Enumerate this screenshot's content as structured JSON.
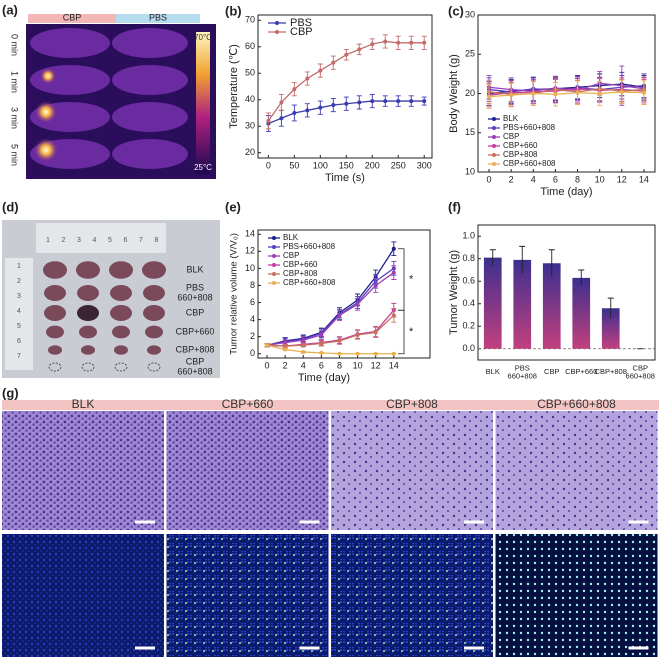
{
  "panels": {
    "a": {
      "label": "(a)",
      "groups": [
        "CBP",
        "PBS"
      ],
      "times": [
        "0 min",
        "1 min",
        "3 min",
        "5 min"
      ],
      "scale": [
        "70°C",
        "25°C"
      ]
    },
    "d": {
      "label": "(d)",
      "ruler_top": [
        "1",
        "2",
        "3",
        "4",
        "5",
        "6",
        "7",
        "8"
      ],
      "ruler_left": [
        "1",
        "2",
        "3",
        "4",
        "5",
        "6",
        "7"
      ],
      "groups": [
        "BLK",
        "PBS 660+808",
        "CBP",
        "CBP+660",
        "CBP+808",
        "CBP 660+808"
      ]
    },
    "g": {
      "label": "(g)",
      "groups": [
        "BLK",
        "CBP+660",
        "CBP+808",
        "CBP+660+808"
      ]
    }
  },
  "chart_data": [
    {
      "type": "line",
      "label": "(b)",
      "xlabel": "Time (s)",
      "ylabel": "Temperature (℃)",
      "legend": "upper left",
      "x": [
        0,
        25,
        50,
        75,
        100,
        125,
        150,
        175,
        200,
        225,
        250,
        275,
        300
      ],
      "series": [
        {
          "name": "PBS",
          "color": "#3b3bb0",
          "values": [
            31,
            33,
            35,
            36,
            37,
            38,
            38.5,
            39,
            39.5,
            39.5,
            39.5,
            39.5,
            39.5
          ],
          "errors": [
            3,
            3,
            3,
            2.5,
            2.5,
            2.5,
            2.5,
            2.5,
            2.5,
            2,
            2,
            2,
            1.5
          ]
        },
        {
          "name": "CBP",
          "color": "#c46a6a",
          "values": [
            32,
            39,
            44,
            48,
            51,
            54,
            57,
            59,
            61,
            62,
            61.5,
            61.5,
            61.5
          ],
          "errors": [
            3,
            3,
            2.5,
            2.5,
            2.5,
            2.5,
            2,
            2,
            2,
            2.5,
            2.5,
            2.5,
            2.5
          ]
        }
      ],
      "xlim": [
        -20,
        315
      ],
      "xticks": [
        0,
        50,
        100,
        150,
        200,
        250,
        300
      ],
      "ylim": [
        18,
        72
      ],
      "yticks": [
        20,
        30,
        40,
        50,
        60,
        70
      ]
    },
    {
      "type": "line",
      "label": "(c)",
      "xlabel": "Time (day)",
      "ylabel": "Body Weight (g)",
      "legend": "lower left",
      "x": [
        0,
        2,
        4,
        6,
        8,
        10,
        12,
        14
      ],
      "series": [
        {
          "name": "BLK",
          "color": "#1f1f8f",
          "values": [
            20,
            20.3,
            20.5,
            20.6,
            20.8,
            21,
            21.2,
            20.8
          ],
          "errors": [
            1.5,
            1.5,
            1.5,
            1.5,
            1.5,
            1.5,
            1.5,
            1.5
          ]
        },
        {
          "name": "PBS+660+808",
          "color": "#5a3fbf",
          "values": [
            20.5,
            20.2,
            20.6,
            20.4,
            20.7,
            20.5,
            20.8,
            21
          ],
          "errors": [
            1.5,
            1.5,
            1.5,
            1.5,
            1.5,
            1.5,
            1.5,
            1.5
          ]
        },
        {
          "name": "CBP",
          "color": "#9b3fb5",
          "values": [
            20.8,
            20.5,
            20.3,
            20.7,
            20.4,
            21.3,
            21,
            20.6
          ],
          "errors": [
            1.5,
            1.5,
            1.5,
            1.5,
            1.5,
            1.5,
            2.5,
            1.5
          ]
        },
        {
          "name": "CBP+660",
          "color": "#c43f9b",
          "values": [
            19.8,
            20.1,
            20.2,
            20.3,
            20.6,
            20.4,
            20.5,
            20.3
          ],
          "errors": [
            1.5,
            1.5,
            1.5,
            1.5,
            1.5,
            1.5,
            1.5,
            1.5
          ]
        },
        {
          "name": "CBP+808",
          "color": "#c87060",
          "values": [
            20.2,
            19.9,
            20,
            20.5,
            20.2,
            20.6,
            20.3,
            20.5
          ],
          "errors": [
            1.5,
            1.5,
            1.5,
            1.5,
            1.5,
            1.5,
            1.5,
            1.5
          ]
        },
        {
          "name": "CBP+660+808",
          "color": "#e8b050",
          "values": [
            19.6,
            19.8,
            20,
            19.9,
            20.1,
            20,
            20.2,
            20.1
          ],
          "errors": [
            1.5,
            1.5,
            1.5,
            1.5,
            1.5,
            1.5,
            1.5,
            1.5
          ]
        }
      ],
      "xlim": [
        -1,
        15
      ],
      "xticks": [
        0,
        2,
        4,
        6,
        8,
        10,
        12,
        14
      ],
      "ylim": [
        10,
        30
      ],
      "yticks": [
        10,
        15,
        20,
        25,
        30
      ]
    },
    {
      "type": "line",
      "label": "(e)",
      "xlabel": "Time (day)",
      "ylabel": "Tumor relative volume (V/V₀)",
      "legend": "upper left",
      "annotations": [
        "*",
        "*"
      ],
      "x": [
        0,
        2,
        4,
        6,
        8,
        10,
        12,
        14
      ],
      "series": [
        {
          "name": "BLK",
          "color": "#1f1f8f",
          "values": [
            1,
            1.5,
            1.8,
            2.5,
            4.8,
            6.3,
            9,
            12.3
          ],
          "errors": [
            0.2,
            0.4,
            0.4,
            0.5,
            0.6,
            0.7,
            0.8,
            0.8
          ]
        },
        {
          "name": "PBS+660+808",
          "color": "#5a3fbf",
          "values": [
            1,
            1.4,
            1.7,
            2.4,
            4.6,
            6,
            8.5,
            10
          ],
          "errors": [
            0.2,
            0.4,
            0.4,
            0.5,
            0.6,
            0.7,
            0.8,
            0.8
          ]
        },
        {
          "name": "CBP",
          "color": "#9b3fb5",
          "values": [
            1,
            1.3,
            1.6,
            2.2,
            4.5,
            5.8,
            8,
            9.5
          ],
          "errors": [
            0.2,
            0.3,
            0.4,
            0.5,
            0.6,
            0.7,
            0.8,
            0.8
          ]
        },
        {
          "name": "CBP+660",
          "color": "#c43f9b",
          "values": [
            1,
            0.9,
            1.1,
            1.3,
            1.6,
            2.3,
            2.6,
            5.1
          ],
          "errors": [
            0.2,
            0.2,
            0.2,
            0.3,
            0.4,
            0.5,
            0.6,
            0.8
          ]
        },
        {
          "name": "CBP+808",
          "color": "#c87060",
          "values": [
            1,
            0.9,
            1,
            1.2,
            1.5,
            2.2,
            2.5,
            4.5
          ],
          "errors": [
            0.2,
            0.2,
            0.2,
            0.3,
            0.4,
            0.5,
            0.6,
            0.8
          ]
        },
        {
          "name": "CBP+660+808",
          "color": "#e8b050",
          "values": [
            1,
            0.5,
            0.2,
            0.1,
            0,
            0,
            0,
            0
          ],
          "errors": [
            0.1,
            0.1,
            0.1,
            0.05,
            0,
            0,
            0,
            0
          ]
        }
      ],
      "xlim": [
        -1,
        18
      ],
      "xticks": [
        0,
        2,
        4,
        6,
        8,
        10,
        12,
        14
      ],
      "ylim": [
        -0.5,
        14.5
      ],
      "yticks": [
        0,
        2,
        4,
        6,
        8,
        10,
        12,
        14
      ]
    },
    {
      "type": "bar",
      "label": "(f)",
      "ylabel": "Tumor Weight (g)",
      "color": [
        "#3c2f8f",
        "#c2407e"
      ],
      "categories": [
        "BLK",
        "PBS 660+808",
        "CBP",
        "CBP+660",
        "CBP+808",
        "CBP 660+808"
      ],
      "values": [
        0.81,
        0.79,
        0.76,
        0.63,
        0.36,
        0
      ],
      "errors": [
        0.07,
        0.12,
        0.12,
        0.07,
        0.09,
        0
      ],
      "ylim": [
        -0.1,
        1.1
      ],
      "yticks": [
        {
          "value": 0,
          "label": "0.0"
        },
        0.2,
        0.4,
        0.6,
        0.8,
        {
          "value": 1,
          "label": "1.0"
        }
      ]
    }
  ]
}
